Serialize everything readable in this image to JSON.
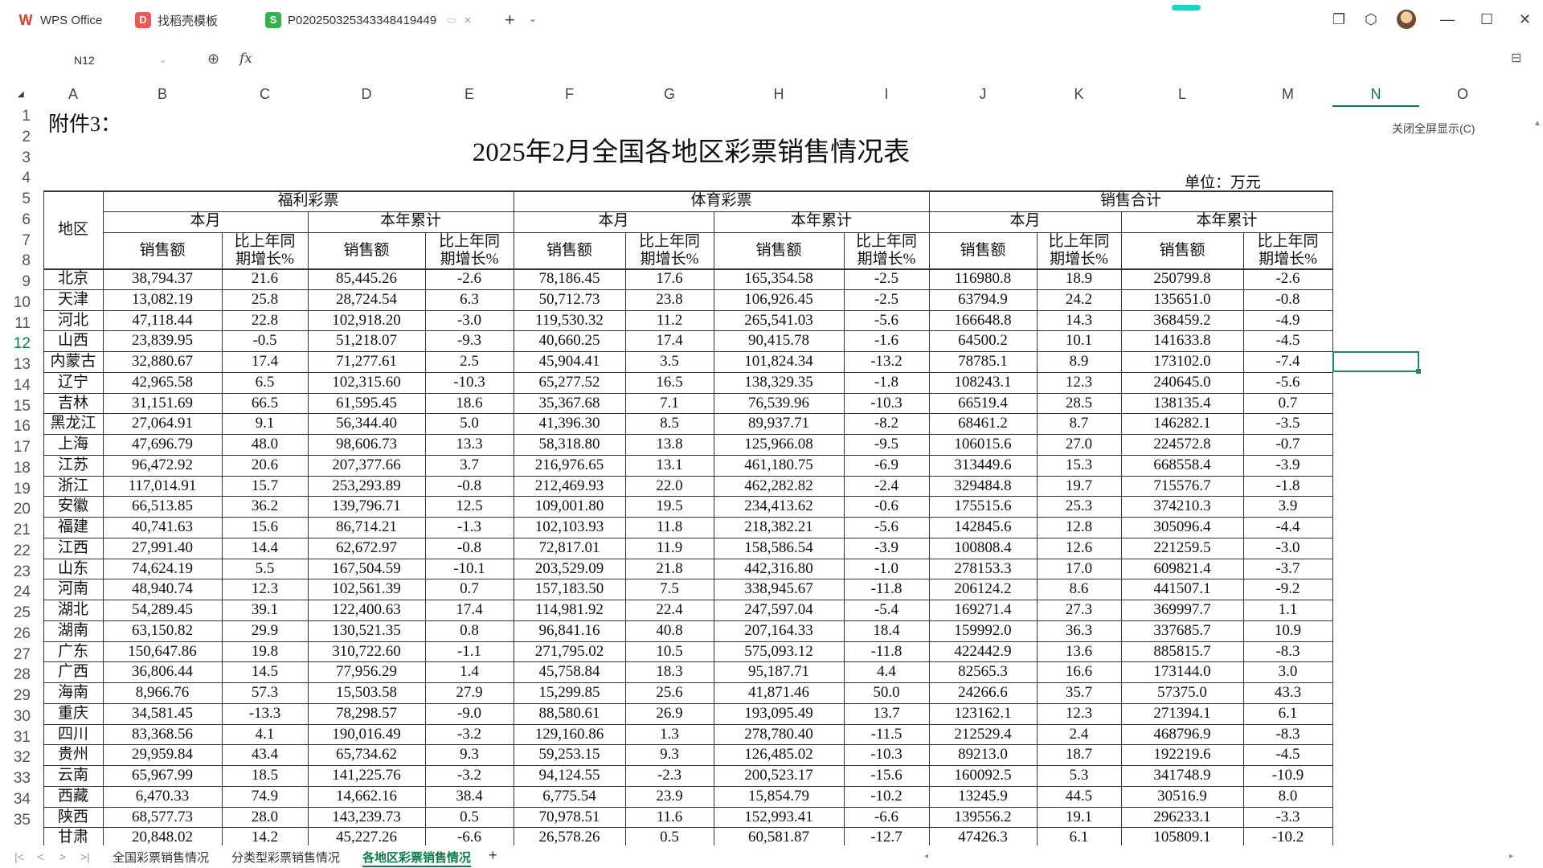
{
  "titlebar": {
    "tabs": [
      {
        "label": "WPS Office",
        "icon": "wps-logo-icon"
      },
      {
        "label": "找稻壳模板",
        "icon": "docer-icon"
      },
      {
        "label": "P020250325343348419449",
        "icon": "spreadsheet-icon"
      }
    ],
    "close_glyph": "×",
    "add_glyph": "+",
    "window_controls": [
      "restore-window-icon",
      "cube-icon",
      "avatar",
      "minimize-icon",
      "maximize-icon",
      "close-icon"
    ]
  },
  "formula_bar": {
    "name_box": "N12",
    "fx": "fx",
    "content": ""
  },
  "columns": [
    "A",
    "B",
    "C",
    "D",
    "E",
    "F",
    "G",
    "H",
    "I",
    "J",
    "K",
    "L",
    "M",
    "N",
    "O"
  ],
  "selected_column": "N",
  "selected_row": 12,
  "rows": [
    "1",
    "2",
    "3",
    "4",
    "5",
    "6",
    "7",
    "8",
    "9",
    "10",
    "11",
    "12",
    "13",
    "14",
    "15",
    "16",
    "17",
    "18",
    "19",
    "20",
    "21",
    "22",
    "23",
    "24",
    "25",
    "26",
    "27",
    "28",
    "29",
    "30",
    "31",
    "32",
    "33",
    "34",
    "35"
  ],
  "exit_fullscreen": "关闭全屏显示(C)",
  "sheet": {
    "attachment": "附件3：",
    "title": "2025年2月全国各地区彩票销售情况表",
    "unit": "单位：万元",
    "header": {
      "region": "地区",
      "welfare": "福利彩票",
      "sports": "体育彩票",
      "total": "销售合计",
      "this_month": "本月",
      "ytd": "本年累计",
      "sales": "销售额",
      "yoy_line1": "比上年同",
      "yoy_line2": "期增长%"
    },
    "data": [
      [
        "北京",
        "38,794.37",
        "21.6",
        "85,445.26",
        "-2.6",
        "78,186.45",
        "17.6",
        "165,354.58",
        "-2.5",
        "116980.8",
        "18.9",
        "250799.8",
        "-2.6"
      ],
      [
        "天津",
        "13,082.19",
        "25.8",
        "28,724.54",
        "6.3",
        "50,712.73",
        "23.8",
        "106,926.45",
        "-2.5",
        "63794.9",
        "24.2",
        "135651.0",
        "-0.8"
      ],
      [
        "河北",
        "47,118.44",
        "22.8",
        "102,918.20",
        "-3.0",
        "119,530.32",
        "11.2",
        "265,541.03",
        "-5.6",
        "166648.8",
        "14.3",
        "368459.2",
        "-4.9"
      ],
      [
        "山西",
        "23,839.95",
        "-0.5",
        "51,218.07",
        "-9.3",
        "40,660.25",
        "17.4",
        "90,415.78",
        "-1.6",
        "64500.2",
        "10.1",
        "141633.8",
        "-4.5"
      ],
      [
        "内蒙古",
        "32,880.67",
        "17.4",
        "71,277.61",
        "2.5",
        "45,904.41",
        "3.5",
        "101,824.34",
        "-13.2",
        "78785.1",
        "8.9",
        "173102.0",
        "-7.4"
      ],
      [
        "辽宁",
        "42,965.58",
        "6.5",
        "102,315.60",
        "-10.3",
        "65,277.52",
        "16.5",
        "138,329.35",
        "-1.8",
        "108243.1",
        "12.3",
        "240645.0",
        "-5.6"
      ],
      [
        "吉林",
        "31,151.69",
        "66.5",
        "61,595.45",
        "18.6",
        "35,367.68",
        "7.1",
        "76,539.96",
        "-10.3",
        "66519.4",
        "28.5",
        "138135.4",
        "0.7"
      ],
      [
        "黑龙江",
        "27,064.91",
        "9.1",
        "56,344.40",
        "5.0",
        "41,396.30",
        "8.5",
        "89,937.71",
        "-8.2",
        "68461.2",
        "8.7",
        "146282.1",
        "-3.5"
      ],
      [
        "上海",
        "47,696.79",
        "48.0",
        "98,606.73",
        "13.3",
        "58,318.80",
        "13.8",
        "125,966.08",
        "-9.5",
        "106015.6",
        "27.0",
        "224572.8",
        "-0.7"
      ],
      [
        "江苏",
        "96,472.92",
        "20.6",
        "207,377.66",
        "3.7",
        "216,976.65",
        "13.1",
        "461,180.75",
        "-6.9",
        "313449.6",
        "15.3",
        "668558.4",
        "-3.9"
      ],
      [
        "浙江",
        "117,014.91",
        "15.7",
        "253,293.89",
        "-0.8",
        "212,469.93",
        "22.0",
        "462,282.82",
        "-2.4",
        "329484.8",
        "19.7",
        "715576.7",
        "-1.8"
      ],
      [
        "安徽",
        "66,513.85",
        "36.2",
        "139,796.71",
        "12.5",
        "109,001.80",
        "19.5",
        "234,413.62",
        "-0.6",
        "175515.6",
        "25.3",
        "374210.3",
        "3.9"
      ],
      [
        "福建",
        "40,741.63",
        "15.6",
        "86,714.21",
        "-1.3",
        "102,103.93",
        "11.8",
        "218,382.21",
        "-5.6",
        "142845.6",
        "12.8",
        "305096.4",
        "-4.4"
      ],
      [
        "江西",
        "27,991.40",
        "14.4",
        "62,672.97",
        "-0.8",
        "72,817.01",
        "11.9",
        "158,586.54",
        "-3.9",
        "100808.4",
        "12.6",
        "221259.5",
        "-3.0"
      ],
      [
        "山东",
        "74,624.19",
        "5.5",
        "167,504.59",
        "-10.1",
        "203,529.09",
        "21.8",
        "442,316.80",
        "-1.0",
        "278153.3",
        "17.0",
        "609821.4",
        "-3.7"
      ],
      [
        "河南",
        "48,940.74",
        "12.3",
        "102,561.39",
        "0.7",
        "157,183.50",
        "7.5",
        "338,945.67",
        "-11.8",
        "206124.2",
        "8.6",
        "441507.1",
        "-9.2"
      ],
      [
        "湖北",
        "54,289.45",
        "39.1",
        "122,400.63",
        "17.4",
        "114,981.92",
        "22.4",
        "247,597.04",
        "-5.4",
        "169271.4",
        "27.3",
        "369997.7",
        "1.1"
      ],
      [
        "湖南",
        "63,150.82",
        "29.9",
        "130,521.35",
        "0.8",
        "96,841.16",
        "40.8",
        "207,164.33",
        "18.4",
        "159992.0",
        "36.3",
        "337685.7",
        "10.9"
      ],
      [
        "广东",
        "150,647.86",
        "19.8",
        "310,722.60",
        "-1.1",
        "271,795.02",
        "10.5",
        "575,093.12",
        "-11.8",
        "422442.9",
        "13.6",
        "885815.7",
        "-8.3"
      ],
      [
        "广西",
        "36,806.44",
        "14.5",
        "77,956.29",
        "1.4",
        "45,758.84",
        "18.3",
        "95,187.71",
        "4.4",
        "82565.3",
        "16.6",
        "173144.0",
        "3.0"
      ],
      [
        "海南",
        "8,966.76",
        "57.3",
        "15,503.58",
        "27.9",
        "15,299.85",
        "25.6",
        "41,871.46",
        "50.0",
        "24266.6",
        "35.7",
        "57375.0",
        "43.3"
      ],
      [
        "重庆",
        "34,581.45",
        "-13.3",
        "78,298.57",
        "-9.0",
        "88,580.61",
        "26.9",
        "193,095.49",
        "13.7",
        "123162.1",
        "12.3",
        "271394.1",
        "6.1"
      ],
      [
        "四川",
        "83,368.56",
        "4.1",
        "190,016.49",
        "-3.2",
        "129,160.86",
        "1.3",
        "278,780.40",
        "-11.5",
        "212529.4",
        "2.4",
        "468796.9",
        "-8.3"
      ],
      [
        "贵州",
        "29,959.84",
        "43.4",
        "65,734.62",
        "9.3",
        "59,253.15",
        "9.3",
        "126,485.02",
        "-10.3",
        "89213.0",
        "18.7",
        "192219.6",
        "-4.5"
      ],
      [
        "云南",
        "65,967.99",
        "18.5",
        "141,225.76",
        "-3.2",
        "94,124.55",
        "-2.3",
        "200,523.17",
        "-15.6",
        "160092.5",
        "5.3",
        "341748.9",
        "-10.9"
      ],
      [
        "西藏",
        "6,470.33",
        "74.9",
        "14,662.16",
        "38.4",
        "6,775.54",
        "23.9",
        "15,854.79",
        "-10.2",
        "13245.9",
        "44.5",
        "30516.9",
        "8.0"
      ],
      [
        "陕西",
        "68,577.73",
        "28.0",
        "143,239.73",
        "0.5",
        "70,978.51",
        "11.6",
        "152,993.41",
        "-6.6",
        "139556.2",
        "19.1",
        "296233.1",
        "-3.3"
      ],
      [
        "甘肃",
        "20,848.02",
        "14.2",
        "45,227.26",
        "-6.6",
        "26,578.26",
        "0.5",
        "60,581.87",
        "-12.7",
        "47426.3",
        "6.1",
        "105809.1",
        "-10.2"
      ]
    ]
  },
  "sheet_tabs": {
    "tabs": [
      "全国彩票销售情况",
      "分类型彩票销售情况",
      "各地区彩票销售情况"
    ],
    "active": 2,
    "add": "+"
  }
}
